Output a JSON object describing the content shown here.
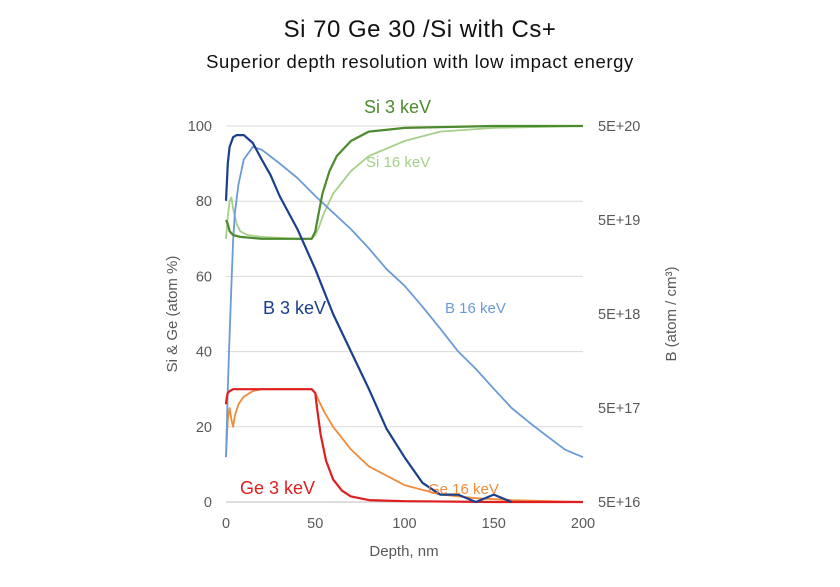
{
  "title": "Si 70 Ge 30 /Si with Cs+",
  "subtitle": "Superior depth resolution with low impact energy",
  "chart_data": {
    "type": "line",
    "xlabel": "Depth, nm",
    "ylabel_left": "Si & Ge (atom %)",
    "ylabel_right": "B (atom / cm³)",
    "xlim": [
      0,
      200
    ],
    "ylim_left": [
      0,
      100
    ],
    "ylim_right_log": [
      5e+16,
      5e+20
    ],
    "x_ticks": [
      "0",
      "50",
      "100",
      "150",
      "200"
    ],
    "y_left_ticks": [
      "0",
      "20",
      "40",
      "60",
      "80",
      "100"
    ],
    "y_right_ticks": [
      "5E+16",
      "5E+17",
      "5E+18",
      "5E+19",
      "5E+20"
    ],
    "grid": "horizontal",
    "series": [
      {
        "name": "Si 3 keV",
        "axis": "left",
        "color": "#4c8a2e",
        "x": [
          0,
          1,
          2,
          4,
          8,
          20,
          40,
          48,
          50,
          52,
          54,
          58,
          62,
          70,
          80,
          100,
          150,
          200
        ],
        "y": [
          75,
          74,
          72,
          71,
          70.5,
          70,
          70,
          70,
          72,
          77,
          82,
          88,
          92,
          96,
          98.5,
          99.5,
          100,
          100
        ]
      },
      {
        "name": "Si 16 keV",
        "axis": "left",
        "color": "#a6cf8a",
        "x": [
          0,
          1,
          2,
          3,
          4,
          6,
          8,
          12,
          20,
          40,
          48,
          50,
          52,
          55,
          60,
          70,
          80,
          100,
          120,
          150,
          200
        ],
        "y": [
          70,
          76,
          80,
          81,
          78,
          74,
          72,
          71,
          70.5,
          70,
          70,
          71,
          73,
          77,
          82,
          88,
          92,
          96,
          98.5,
          99.5,
          100
        ]
      },
      {
        "name": "Ge 3 keV",
        "axis": "left",
        "color": "#dd1f1f",
        "x": [
          0,
          0.5,
          1,
          2,
          4,
          10,
          30,
          48,
          50,
          51,
          53,
          56,
          60,
          65,
          70,
          80,
          100,
          150,
          200
        ],
        "y": [
          26,
          28,
          29,
          29.5,
          30,
          30,
          30,
          30,
          29,
          25,
          18,
          11,
          6,
          3,
          1.5,
          0.5,
          0.2,
          0,
          0
        ]
      },
      {
        "name": "Ge 16 keV",
        "axis": "left",
        "color": "#ef8b3c",
        "x": [
          0,
          1,
          2,
          3,
          4,
          5,
          7,
          10,
          15,
          20,
          48,
          50,
          52,
          55,
          60,
          70,
          80,
          100,
          120,
          140,
          160,
          200
        ],
        "y": [
          12,
          22,
          25,
          22,
          20,
          23,
          26,
          28,
          29.5,
          30,
          30,
          29,
          27,
          24,
          20,
          14,
          9.5,
          4.5,
          2,
          1,
          0.5,
          0
        ]
      },
      {
        "name": "B 3 keV",
        "axis": "right",
        "color": "#1a3f8c",
        "x": [
          0,
          1,
          2,
          4,
          6,
          10,
          15,
          20,
          25,
          30,
          40,
          50,
          60,
          70,
          80,
          90,
          100,
          110,
          120,
          130,
          140,
          150,
          160
        ],
        "y": [
          8e+19,
          2e+20,
          3e+20,
          3.8e+20,
          4e+20,
          4e+20,
          3.3e+20,
          2.2e+20,
          1.5e+20,
          9e+19,
          4e+19,
          1.5e+19,
          5e+18,
          2e+18,
          8e+17,
          3e+17,
          1.5e+17,
          8e+16,
          6e+16,
          6e+16,
          5e+16,
          6e+16,
          5e+16
        ]
      },
      {
        "name": "B 16 keV",
        "axis": "right",
        "color": "#6a9bd6",
        "x": [
          0,
          1,
          2,
          3,
          4,
          5,
          7,
          10,
          15,
          20,
          30,
          40,
          50,
          60,
          70,
          80,
          90,
          100,
          110,
          120,
          130,
          140,
          150,
          160,
          170,
          180,
          190,
          200
        ],
        "y": [
          1.5e+17,
          8e+17,
          3e+18,
          1e+19,
          3e+19,
          6e+19,
          1.2e+20,
          2.2e+20,
          3e+20,
          2.8e+20,
          2e+20,
          1.4e+20,
          9e+19,
          6e+19,
          4e+19,
          2.5e+19,
          1.5e+19,
          1e+19,
          6e+18,
          3.5e+18,
          2e+18,
          1.3e+18,
          8e+17,
          5e+17,
          3.5e+17,
          2.5e+17,
          1.8e+17,
          1.5e+17
        ]
      }
    ],
    "annotations": [
      "Si 3 keV",
      "Si 16 keV",
      "B 3 keV",
      "B 16 keV",
      "Ge 3 keV",
      "Ge 16 keV"
    ]
  }
}
